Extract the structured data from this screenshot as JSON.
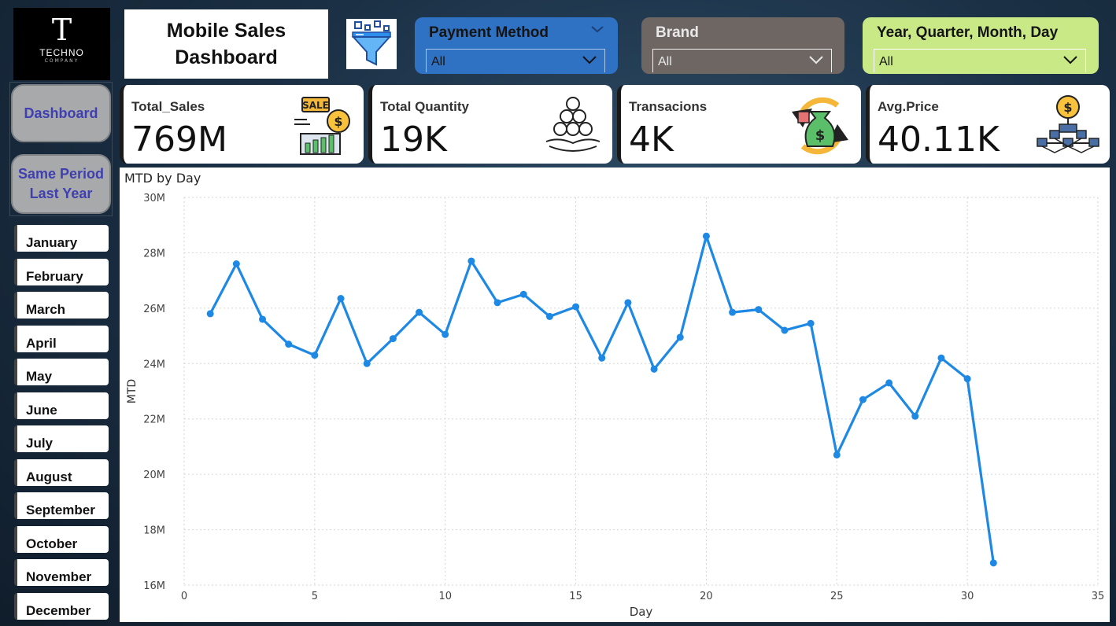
{
  "logo": {
    "letter": "T",
    "name": "TECHNO",
    "sub": "COMPANY"
  },
  "dashboard_title": [
    "Mobile Sales",
    "Dashboard"
  ],
  "slicers": [
    {
      "label": "Payment Method",
      "value": "All",
      "color": "#2f72c4",
      "text_color": "#141414"
    },
    {
      "label": "Brand",
      "value": "All",
      "color": "#6e6663",
      "text_color": "#e8e8e8"
    },
    {
      "label": "Year, Quarter, Month, Day",
      "value": "All",
      "color": "#c9e886",
      "text_color": "#141414"
    }
  ],
  "nav": {
    "dashboard": "Dashboard",
    "same_period": [
      "Same Period",
      "Last Year"
    ]
  },
  "months": [
    "January",
    "February",
    "March",
    "April",
    "May",
    "June",
    "July",
    "August",
    "September",
    "October",
    "November",
    "December"
  ],
  "kpis": [
    {
      "label": "Total_Sales",
      "value": "769M",
      "icon": "sale-chart-icon"
    },
    {
      "label": "Total Quantity",
      "value": "19K",
      "icon": "coins-stack-hand-icon"
    },
    {
      "label": "Transacions",
      "value": "4K",
      "icon": "money-bag-cycle-icon"
    },
    {
      "label": "Avg.Price",
      "value": "40.11K",
      "icon": "dollar-network-icon"
    }
  ],
  "chart_data": {
    "type": "line",
    "title": "MTD by Day",
    "xlabel": "Day",
    "ylabel": "MTD",
    "xlim": [
      0,
      35
    ],
    "ylim": [
      16,
      30
    ],
    "x_ticks": [
      "0",
      "5",
      "10",
      "15",
      "20",
      "25",
      "30",
      "35"
    ],
    "y_ticks": [
      "16M",
      "18M",
      "20M",
      "22M",
      "24M",
      "26M",
      "28M",
      "30M"
    ],
    "grid": true,
    "color": "#1e88e5",
    "x": [
      1,
      2,
      3,
      4,
      5,
      6,
      7,
      8,
      9,
      10,
      11,
      12,
      13,
      14,
      15,
      16,
      17,
      18,
      19,
      20,
      21,
      22,
      23,
      24,
      25,
      26,
      27,
      28,
      29,
      30,
      31
    ],
    "y": [
      25.8,
      27.6,
      25.6,
      24.7,
      24.3,
      26.35,
      24.0,
      24.9,
      25.85,
      25.05,
      27.7,
      26.2,
      26.5,
      25.7,
      26.05,
      24.2,
      26.2,
      23.8,
      24.95,
      28.6,
      25.85,
      25.95,
      25.2,
      25.45,
      20.7,
      22.7,
      23.3,
      22.1,
      24.2,
      23.45,
      16.8
    ],
    "y_unit": "M"
  }
}
